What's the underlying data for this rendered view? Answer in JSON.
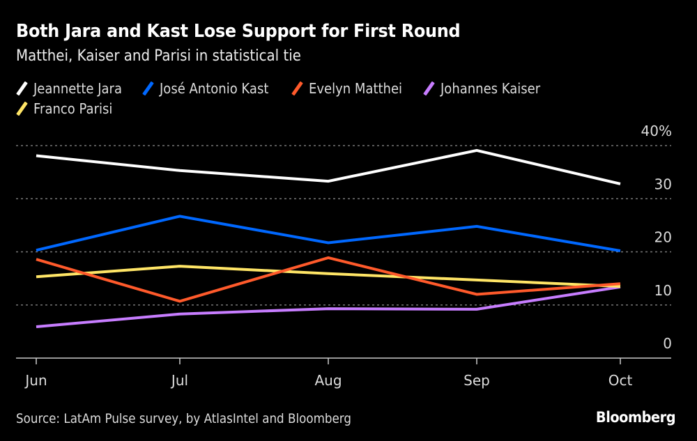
{
  "chart_data": {
    "type": "line",
    "title": "Both Jara and Kast Lose Support for First Round",
    "subtitle": "Matthei, Kaiser and Parisi in statistical tie",
    "x": [
      "Jun",
      "Jul",
      "Aug",
      "Sep",
      "Oct"
    ],
    "xlabel": "",
    "ylabel": "",
    "ylim": [
      0,
      40
    ],
    "yticks": [
      0,
      10,
      20,
      30,
      40
    ],
    "ytick_labels": [
      "0",
      "10",
      "20",
      "30",
      "40%"
    ],
    "grid": true,
    "legend_position": "top-left",
    "series": [
      {
        "name": "Jeannette Jara",
        "color": "#ffffff",
        "values": [
          38.1,
          35.3,
          33.3,
          39.1,
          32.8
        ]
      },
      {
        "name": "José Antonio Kast",
        "color": "#0068ff",
        "values": [
          20.3,
          26.7,
          21.7,
          24.8,
          20.2
        ]
      },
      {
        "name": "Evelyn Matthei",
        "color": "#ff5a2b",
        "values": [
          18.6,
          10.7,
          18.9,
          12.0,
          14.0
        ]
      },
      {
        "name": "Johannes Kaiser",
        "color": "#c77dff",
        "values": [
          5.9,
          8.3,
          9.3,
          9.2,
          13.4
        ]
      },
      {
        "name": "Franco Parisi",
        "color": "#ffe566",
        "values": [
          15.3,
          17.3,
          15.9,
          14.7,
          13.5
        ]
      }
    ],
    "source": "Source: LatAm Pulse survey, by AtlasIntel and Bloomberg"
  },
  "brand": "Bloomberg"
}
